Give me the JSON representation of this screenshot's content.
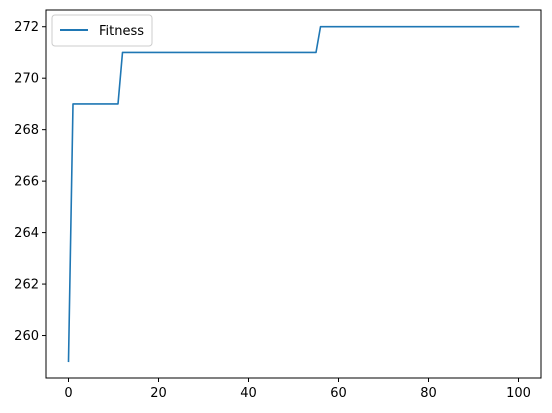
{
  "chart_data": {
    "type": "line",
    "title": "",
    "xlabel": "",
    "ylabel": "",
    "xlim": [
      -5,
      105
    ],
    "ylim": [
      258.35,
      272.65
    ],
    "x_ticks": [
      0,
      20,
      40,
      60,
      80,
      100
    ],
    "y_ticks": [
      260,
      262,
      264,
      266,
      268,
      270,
      272
    ],
    "grid": false,
    "legend_position": "upper-left",
    "series": [
      {
        "name": "Fitness",
        "color": "#1f77b4",
        "points": [
          [
            0,
            259
          ],
          [
            1,
            269
          ],
          [
            11,
            269
          ],
          [
            12,
            271
          ],
          [
            55,
            271
          ],
          [
            56,
            272
          ],
          [
            100,
            272
          ]
        ]
      }
    ]
  }
}
